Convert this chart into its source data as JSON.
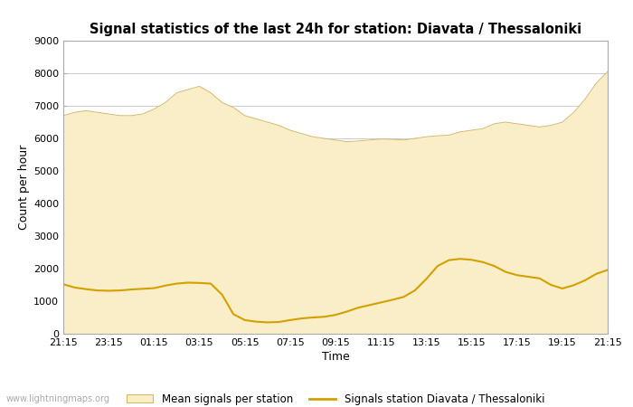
{
  "title": "Signal statistics of the last 24h for station: Diavata / Thessaloniki",
  "xlabel": "Time",
  "ylabel": "Count per hour",
  "ylim": [
    0,
    9000
  ],
  "yticks": [
    0,
    1000,
    2000,
    3000,
    4000,
    5000,
    6000,
    7000,
    8000,
    9000
  ],
  "xtick_labels": [
    "21:15",
    "23:15",
    "01:15",
    "03:15",
    "05:15",
    "07:15",
    "09:15",
    "11:15",
    "13:15",
    "15:15",
    "17:15",
    "19:15",
    "21:15"
  ],
  "watermark": "www.lightningmaps.org",
  "fill_color": "#faeec8",
  "fill_edge_color": "#d4b86a",
  "line_color": "#d4a000",
  "background_color": "#ffffff",
  "grid_color": "#cccccc",
  "mean_x": [
    0,
    1,
    2,
    3,
    4,
    5,
    6,
    7,
    8,
    9,
    10,
    11,
    12,
    13,
    14,
    15,
    16,
    17,
    18,
    19,
    20,
    21,
    22,
    23,
    24,
    25,
    26,
    27,
    28,
    29,
    30,
    31,
    32,
    33,
    34,
    35,
    36,
    37,
    38,
    39,
    40,
    41,
    42,
    43,
    44,
    45,
    46,
    47,
    48
  ],
  "mean_y": [
    6700,
    6800,
    6850,
    6800,
    6750,
    6700,
    6700,
    6750,
    6900,
    7100,
    7400,
    7500,
    7600,
    7400,
    7100,
    6950,
    6700,
    6600,
    6500,
    6400,
    6250,
    6150,
    6050,
    6000,
    5950,
    5900,
    5920,
    5950,
    5980,
    5970,
    5950,
    6000,
    6050,
    6080,
    6100,
    6200,
    6250,
    6300,
    6450,
    6500,
    6450,
    6400,
    6350,
    6400,
    6500,
    6800,
    7200,
    7700,
    8050
  ],
  "station_x": [
    0,
    1,
    2,
    3,
    4,
    5,
    6,
    7,
    8,
    9,
    10,
    11,
    12,
    13,
    14,
    15,
    16,
    17,
    18,
    19,
    20,
    21,
    22,
    23,
    24,
    25,
    26,
    27,
    28,
    29,
    30,
    31,
    32,
    33,
    34,
    35,
    36,
    37,
    38,
    39,
    40,
    41,
    42,
    43,
    44,
    45,
    46,
    47,
    48
  ],
  "station_y": [
    1520,
    1420,
    1370,
    1330,
    1320,
    1330,
    1360,
    1380,
    1400,
    1480,
    1540,
    1570,
    1560,
    1540,
    1200,
    600,
    420,
    370,
    350,
    360,
    420,
    470,
    500,
    520,
    580,
    680,
    800,
    880,
    960,
    1040,
    1130,
    1330,
    1680,
    2080,
    2260,
    2300,
    2270,
    2200,
    2080,
    1900,
    1800,
    1750,
    1700,
    1500,
    1390,
    1490,
    1640,
    1840,
    1960
  ],
  "legend_fill_label": "Mean signals per station",
  "legend_line_label": "Signals station Diavata / Thessaloniki"
}
